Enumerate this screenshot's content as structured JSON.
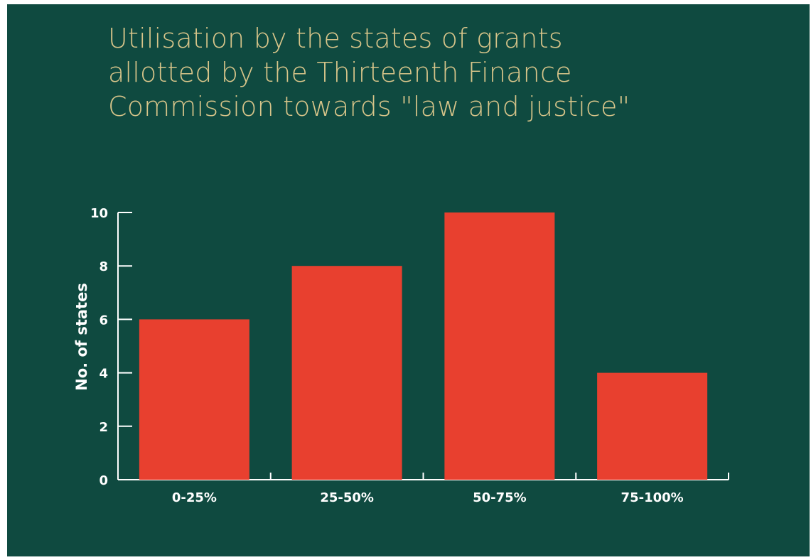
{
  "title_lines": [
    "Utilisation by the states of grants",
    "allotted by the Thirteenth Finance",
    "Commission towards \"law and justice\""
  ],
  "colors": {
    "background": "#0f4a40",
    "bar": "#e8402f",
    "title": "#d8c58a",
    "axis": "#ffffff"
  },
  "chart_data": {
    "type": "bar",
    "title": "Utilisation by the states of grants allotted by the Thirteenth Finance Commission towards \"law and justice\"",
    "categories": [
      "0-25%",
      "25-50%",
      "50-75%",
      "75-100%"
    ],
    "values": [
      6,
      8,
      10,
      4
    ],
    "xlabel": "",
    "ylabel": "No. of states",
    "ylim": [
      0,
      10
    ],
    "yticks": [
      0,
      2,
      4,
      6,
      8,
      10
    ],
    "ytick_labels": [
      "0",
      "2",
      "4",
      "6",
      "8",
      "10"
    ],
    "grid": false,
    "legend": "none"
  }
}
